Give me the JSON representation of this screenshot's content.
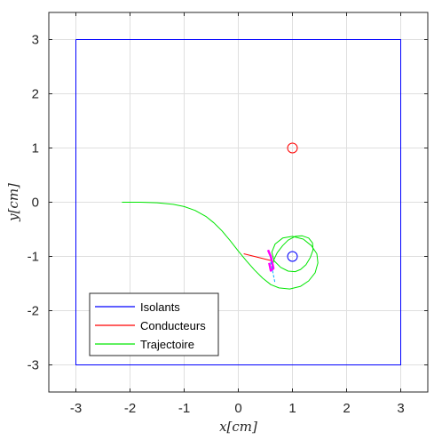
{
  "chart_data": {
    "type": "line",
    "title": "",
    "xlabel": "x[cm]",
    "ylabel": "y[cm]",
    "xlim": [
      -3.5,
      3.5
    ],
    "ylim": [
      -3.5,
      3.5
    ],
    "xticks": [
      -3,
      -2,
      -1,
      0,
      1,
      2,
      3
    ],
    "yticks": [
      -3,
      -2,
      -1,
      0,
      1,
      2,
      3
    ],
    "grid": true,
    "legend_position": "bottom-left",
    "colors": {
      "isolants": "#0000ff",
      "conducteurs": "#ff0000",
      "trajectoire": "#00e600",
      "marker": "#ff00ff",
      "arrow": "#00aaff"
    },
    "series": [
      {
        "name": "Isolants",
        "shape": "square-boundary",
        "x": [
          -3,
          3,
          3,
          -3,
          -3
        ],
        "y": [
          3,
          3,
          -3,
          -3,
          3
        ]
      },
      {
        "name": "Isolants",
        "shape": "circle",
        "center": [
          1,
          -1
        ],
        "radius": 0.09
      },
      {
        "name": "Conducteurs",
        "shape": "circle",
        "center": [
          1,
          1
        ],
        "radius": 0.09
      },
      {
        "name": "Conducteurs",
        "shape": "segment",
        "x": [
          0.1,
          0.62
        ],
        "y": [
          -0.95,
          -1.08
        ]
      },
      {
        "name": "Trajectoire",
        "shape": "curve",
        "x": [
          -2.15,
          -1.8,
          -1.5,
          -1.2,
          -1.0,
          -0.8,
          -0.6,
          -0.45,
          -0.3,
          -0.15,
          0.0,
          0.15,
          0.3,
          0.45,
          0.6,
          0.75,
          0.95,
          1.15,
          1.3,
          1.42,
          1.47,
          1.45,
          1.35,
          1.2,
          1.0,
          0.82,
          0.68,
          0.62,
          0.66,
          0.78,
          0.92,
          1.05,
          1.15,
          1.25,
          1.33,
          1.38,
          1.37,
          1.3,
          1.18,
          1.05,
          0.92,
          0.82,
          0.72,
          0.66,
          0.62
        ],
        "y": [
          0.0,
          0.0,
          -0.01,
          -0.04,
          -0.08,
          -0.15,
          -0.26,
          -0.38,
          -0.53,
          -0.71,
          -0.9,
          -1.08,
          -1.25,
          -1.4,
          -1.52,
          -1.58,
          -1.6,
          -1.55,
          -1.45,
          -1.3,
          -1.12,
          -0.95,
          -0.8,
          -0.68,
          -0.63,
          -0.66,
          -0.77,
          -0.92,
          -1.08,
          -1.2,
          -1.27,
          -1.28,
          -1.24,
          -1.15,
          -1.02,
          -0.88,
          -0.75,
          -0.66,
          -0.62,
          -0.63,
          -0.7,
          -0.8,
          -0.93,
          -1.05,
          -1.2
        ]
      },
      {
        "name": "",
        "shape": "marker",
        "x": [
          0.55,
          0.6,
          0.65,
          0.6,
          0.57
        ],
        "y": [
          -0.88,
          -1.0,
          -1.22,
          -1.26,
          -1.12
        ]
      },
      {
        "name": "",
        "shape": "arrow",
        "x": [
          0.6,
          0.68
        ],
        "y": [
          -1.1,
          -1.5
        ]
      }
    ]
  },
  "legend": {
    "items": [
      {
        "label": "Isolants",
        "color": "#0000ff"
      },
      {
        "label": "Conducteurs",
        "color": "#ff0000"
      },
      {
        "label": "Trajectoire",
        "color": "#00e600"
      }
    ]
  }
}
